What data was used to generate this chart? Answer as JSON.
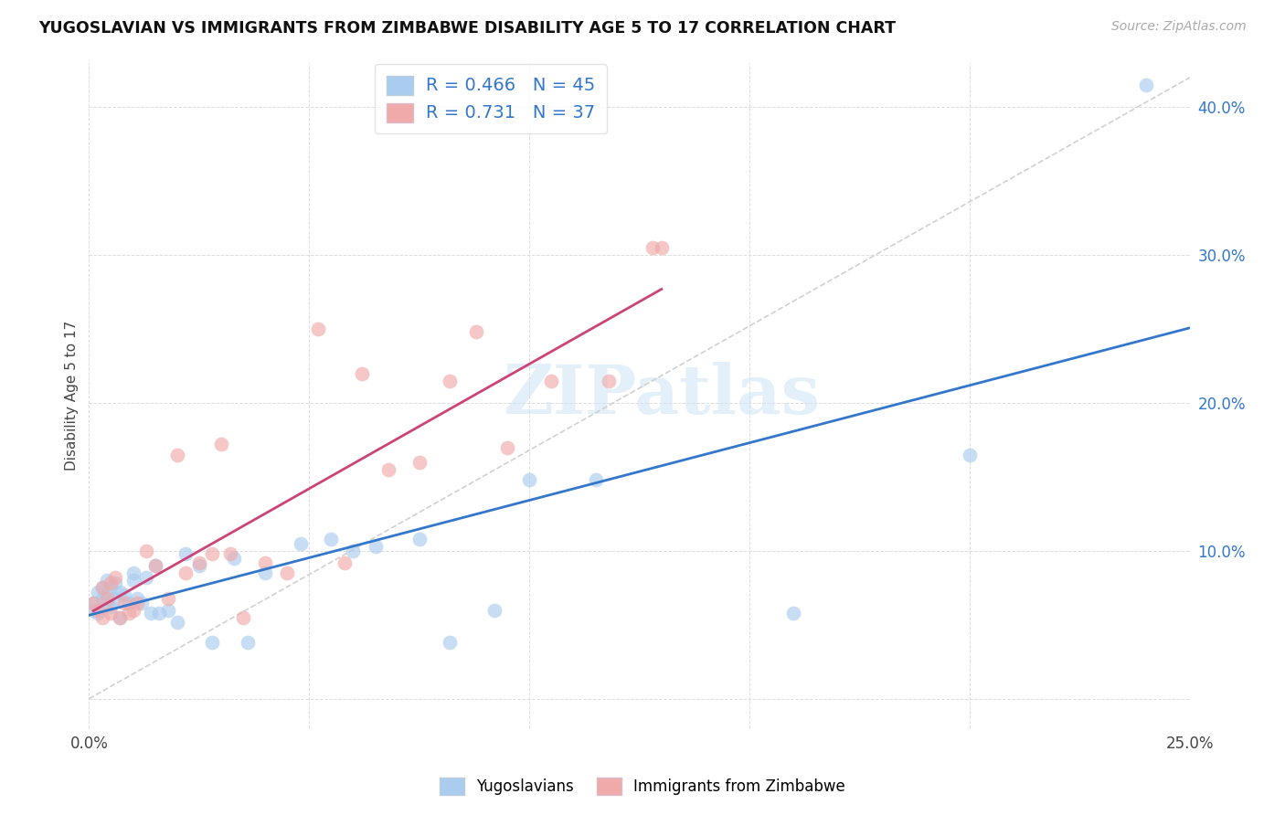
{
  "title": "YUGOSLAVIAN VS IMMIGRANTS FROM ZIMBABWE DISABILITY AGE 5 TO 17 CORRELATION CHART",
  "source": "Source: ZipAtlas.com",
  "ylabel": "Disability Age 5 to 17",
  "xlim": [
    0.0,
    0.25
  ],
  "ylim": [
    -0.02,
    0.43
  ],
  "yticks": [
    0.0,
    0.1,
    0.2,
    0.3,
    0.4
  ],
  "ytick_labels": [
    "",
    "10.0%",
    "20.0%",
    "30.0%",
    "40.0%"
  ],
  "xticks": [
    0.0,
    0.05,
    0.1,
    0.15,
    0.2,
    0.25
  ],
  "xtick_labels": [
    "0.0%",
    "",
    "",
    "",
    "",
    "25.0%"
  ],
  "legend_labels": [
    "Yugoslavians",
    "Immigrants from Zimbabwe"
  ],
  "blue_R": "0.466",
  "blue_N": "45",
  "pink_R": "0.731",
  "pink_N": "37",
  "blue_scatter_color": "#aaccee",
  "pink_scatter_color": "#f0aaaa",
  "blue_line_color": "#3377cc",
  "pink_line_color": "#cc4477",
  "diag_color": "#cccccc",
  "background_color": "#ffffff",
  "watermark": "ZIPatlas",
  "blue_x": [
    0.001,
    0.001,
    0.002,
    0.002,
    0.003,
    0.003,
    0.004,
    0.004,
    0.004,
    0.005,
    0.005,
    0.006,
    0.006,
    0.007,
    0.007,
    0.008,
    0.009,
    0.01,
    0.01,
    0.011,
    0.012,
    0.013,
    0.014,
    0.015,
    0.016,
    0.018,
    0.02,
    0.022,
    0.025,
    0.028,
    0.033,
    0.036,
    0.04,
    0.048,
    0.055,
    0.06,
    0.065,
    0.075,
    0.082,
    0.092,
    0.1,
    0.115,
    0.16,
    0.2,
    0.24
  ],
  "blue_y": [
    0.06,
    0.065,
    0.058,
    0.072,
    0.068,
    0.075,
    0.065,
    0.07,
    0.08,
    0.062,
    0.075,
    0.068,
    0.078,
    0.055,
    0.072,
    0.07,
    0.065,
    0.08,
    0.085,
    0.068,
    0.065,
    0.082,
    0.058,
    0.09,
    0.058,
    0.06,
    0.052,
    0.098,
    0.09,
    0.038,
    0.095,
    0.038,
    0.085,
    0.105,
    0.108,
    0.1,
    0.103,
    0.108,
    0.038,
    0.06,
    0.148,
    0.148,
    0.058,
    0.165,
    0.415
  ],
  "pink_x": [
    0.001,
    0.002,
    0.003,
    0.003,
    0.004,
    0.005,
    0.005,
    0.006,
    0.007,
    0.008,
    0.009,
    0.01,
    0.011,
    0.013,
    0.015,
    0.018,
    0.02,
    0.022,
    0.025,
    0.028,
    0.03,
    0.032,
    0.035,
    0.04,
    0.045,
    0.052,
    0.058,
    0.062,
    0.068,
    0.075,
    0.082,
    0.088,
    0.095,
    0.105,
    0.118,
    0.128,
    0.13
  ],
  "pink_y": [
    0.065,
    0.06,
    0.055,
    0.075,
    0.068,
    0.058,
    0.078,
    0.082,
    0.055,
    0.065,
    0.058,
    0.06,
    0.065,
    0.1,
    0.09,
    0.068,
    0.165,
    0.085,
    0.092,
    0.098,
    0.172,
    0.098,
    0.055,
    0.092,
    0.085,
    0.25,
    0.092,
    0.22,
    0.155,
    0.16,
    0.215,
    0.248,
    0.17,
    0.215,
    0.215,
    0.305,
    0.305
  ]
}
